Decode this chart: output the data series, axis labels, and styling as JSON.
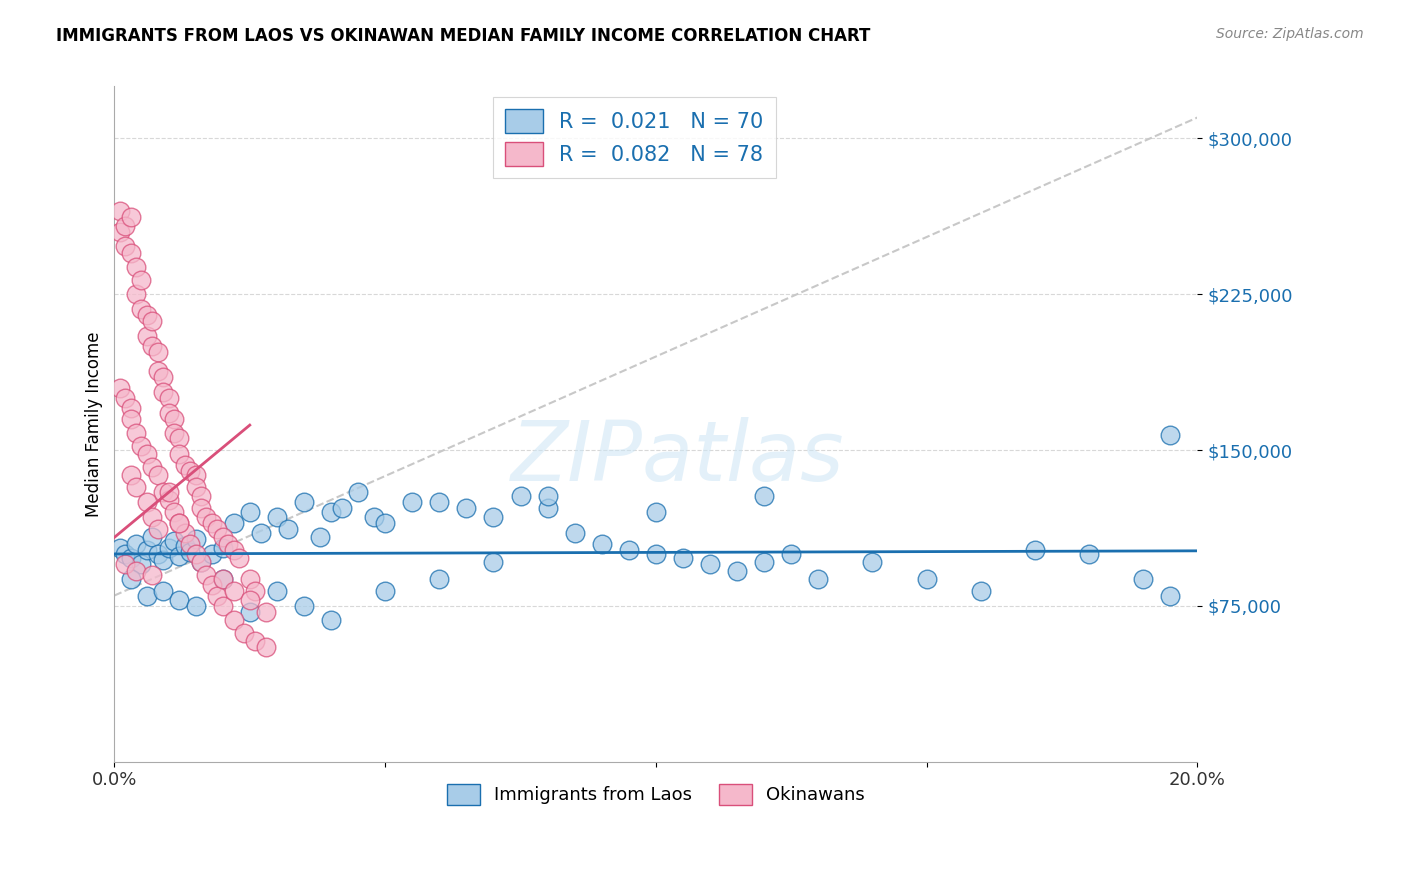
{
  "title": "IMMIGRANTS FROM LAOS VS OKINAWAN MEDIAN FAMILY INCOME CORRELATION CHART",
  "source": "Source: ZipAtlas.com",
  "ylabel": "Median Family Income",
  "x_min": 0.0,
  "x_max": 0.2,
  "y_min": 0,
  "y_max": 325000,
  "y_ticks": [
    75000,
    150000,
    225000,
    300000
  ],
  "y_tick_labels": [
    "$75,000",
    "$150,000",
    "$225,000",
    "$300,000"
  ],
  "color_blue": "#a8cce8",
  "color_pink": "#f5b8cb",
  "color_blue_dark": "#1a6faf",
  "color_pink_dark": "#d94f7a",
  "color_dash": "#c8c8c8",
  "legend_label1": "Immigrants from Laos",
  "legend_label2": "Okinawans",
  "blue_line_y": [
    100000,
    101500
  ],
  "pink_line_x": [
    0.0,
    0.025
  ],
  "pink_line_y": [
    108000,
    162000
  ],
  "dash_line_x": [
    0.0,
    0.2
  ],
  "dash_line_y": [
    80000,
    310000
  ],
  "blue_x": [
    0.001,
    0.002,
    0.003,
    0.004,
    0.005,
    0.006,
    0.007,
    0.008,
    0.009,
    0.01,
    0.011,
    0.012,
    0.013,
    0.014,
    0.015,
    0.016,
    0.018,
    0.02,
    0.022,
    0.025,
    0.027,
    0.03,
    0.032,
    0.035,
    0.038,
    0.04,
    0.042,
    0.045,
    0.048,
    0.05,
    0.055,
    0.06,
    0.065,
    0.07,
    0.075,
    0.08,
    0.085,
    0.09,
    0.095,
    0.1,
    0.105,
    0.11,
    0.115,
    0.12,
    0.125,
    0.13,
    0.14,
    0.15,
    0.16,
    0.17,
    0.18,
    0.19,
    0.195,
    0.003,
    0.006,
    0.009,
    0.012,
    0.015,
    0.02,
    0.025,
    0.03,
    0.035,
    0.04,
    0.05,
    0.06,
    0.07,
    0.08,
    0.1,
    0.12,
    0.195
  ],
  "blue_y": [
    103000,
    100000,
    98000,
    105000,
    95000,
    102000,
    108000,
    100000,
    97000,
    103000,
    106000,
    99000,
    104000,
    101000,
    107000,
    96000,
    100000,
    103000,
    115000,
    120000,
    110000,
    118000,
    112000,
    125000,
    108000,
    120000,
    122000,
    130000,
    118000,
    115000,
    125000,
    125000,
    122000,
    118000,
    128000,
    122000,
    110000,
    105000,
    102000,
    100000,
    98000,
    95000,
    92000,
    96000,
    100000,
    88000,
    96000,
    88000,
    82000,
    102000,
    100000,
    88000,
    157000,
    88000,
    80000,
    82000,
    78000,
    75000,
    88000,
    72000,
    82000,
    75000,
    68000,
    82000,
    88000,
    96000,
    128000,
    120000,
    128000,
    80000
  ],
  "pink_x": [
    0.001,
    0.001,
    0.002,
    0.002,
    0.003,
    0.003,
    0.004,
    0.004,
    0.005,
    0.005,
    0.006,
    0.006,
    0.007,
    0.007,
    0.008,
    0.008,
    0.009,
    0.009,
    0.01,
    0.01,
    0.011,
    0.011,
    0.012,
    0.012,
    0.013,
    0.014,
    0.015,
    0.015,
    0.016,
    0.016,
    0.017,
    0.018,
    0.019,
    0.02,
    0.021,
    0.022,
    0.023,
    0.025,
    0.026,
    0.028,
    0.001,
    0.002,
    0.003,
    0.003,
    0.004,
    0.005,
    0.006,
    0.007,
    0.008,
    0.009,
    0.01,
    0.011,
    0.012,
    0.013,
    0.014,
    0.015,
    0.016,
    0.017,
    0.018,
    0.019,
    0.02,
    0.022,
    0.024,
    0.026,
    0.028,
    0.01,
    0.012,
    0.003,
    0.004,
    0.006,
    0.007,
    0.008,
    0.002,
    0.004,
    0.007,
    0.02,
    0.022,
    0.025
  ],
  "pink_y": [
    255000,
    265000,
    258000,
    248000,
    262000,
    245000,
    238000,
    225000,
    232000,
    218000,
    215000,
    205000,
    212000,
    200000,
    197000,
    188000,
    185000,
    178000,
    175000,
    168000,
    165000,
    158000,
    156000,
    148000,
    143000,
    140000,
    138000,
    132000,
    128000,
    122000,
    118000,
    115000,
    112000,
    108000,
    105000,
    102000,
    98000,
    88000,
    82000,
    72000,
    180000,
    175000,
    170000,
    165000,
    158000,
    152000,
    148000,
    142000,
    138000,
    130000,
    126000,
    120000,
    115000,
    110000,
    105000,
    100000,
    96000,
    90000,
    85000,
    80000,
    75000,
    68000,
    62000,
    58000,
    55000,
    130000,
    115000,
    138000,
    132000,
    125000,
    118000,
    112000,
    95000,
    92000,
    90000,
    88000,
    82000,
    78000
  ]
}
